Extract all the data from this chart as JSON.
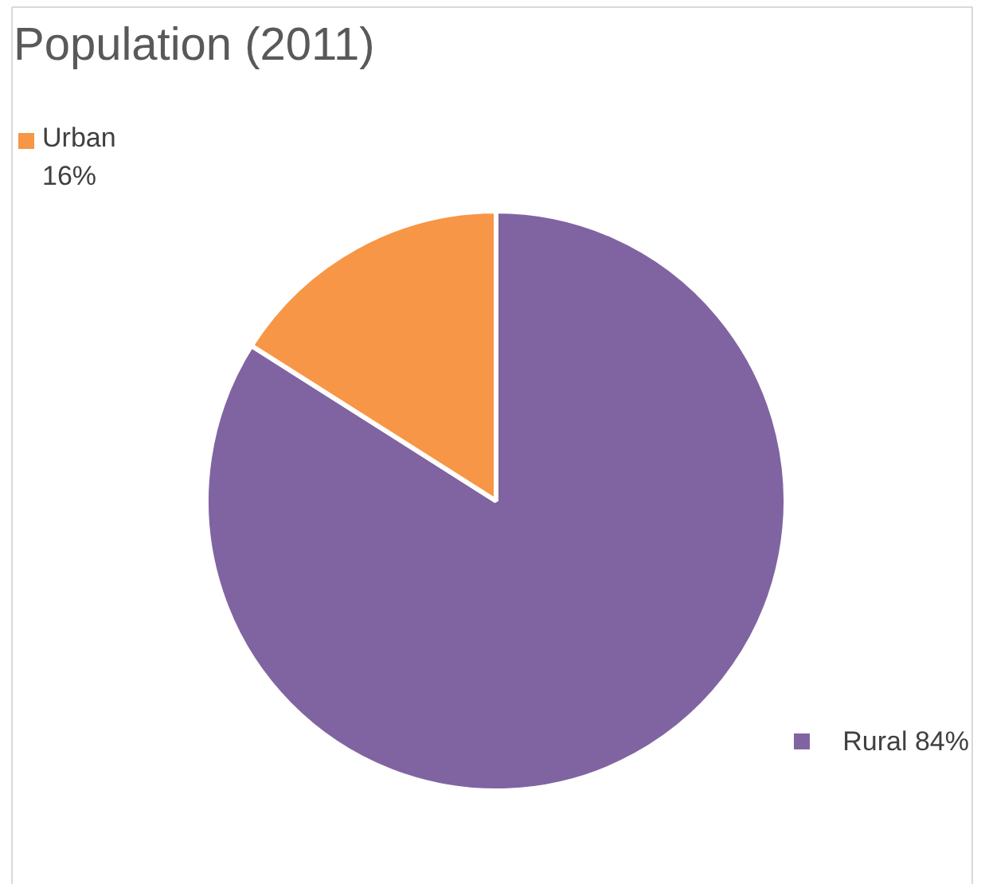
{
  "chart_data": {
    "type": "pie",
    "title": "Population (2011)",
    "categories": [
      "Rural",
      "Urban"
    ],
    "values": [
      84,
      16
    ],
    "colors": [
      "#8064a2",
      "#f79646"
    ],
    "value_labels": [
      "84%",
      "16%"
    ],
    "legend": "top left"
  }
}
